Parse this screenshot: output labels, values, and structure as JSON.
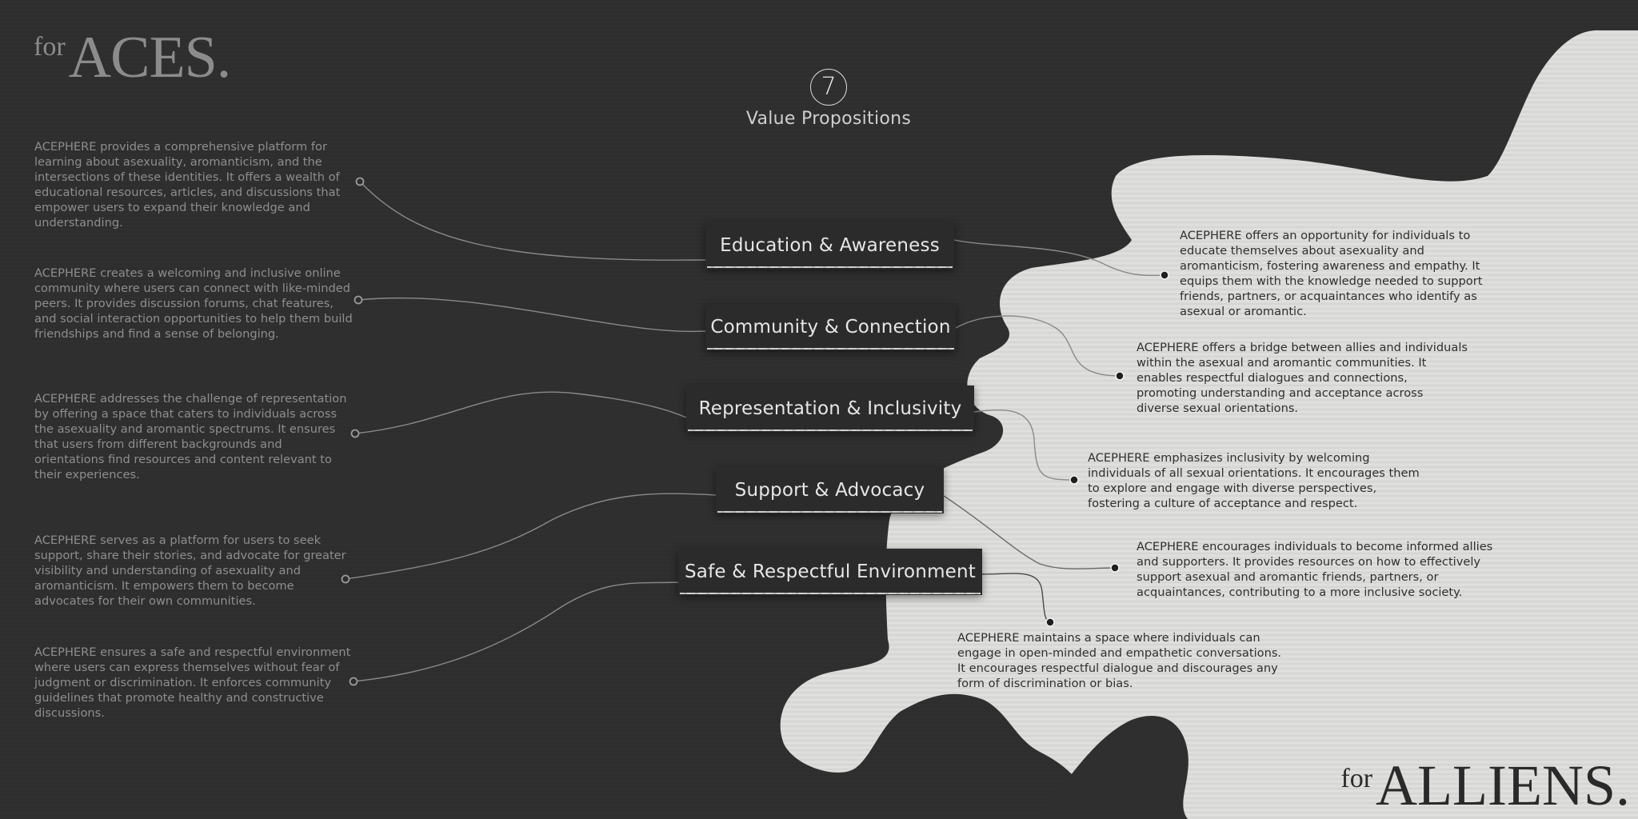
{
  "header": {
    "for_small": "for",
    "aces": "ACES."
  },
  "footer": {
    "for_small": "for",
    "alliens": "ALLIENS."
  },
  "value_props": {
    "number": "7",
    "title": "Value Propositions"
  },
  "propositions": [
    {
      "label": "Education & Awareness"
    },
    {
      "label": "Community & Connection"
    },
    {
      "label": "Representation & Inclusivity"
    },
    {
      "label": "Support & Advocacy"
    },
    {
      "label": "Safe & Respectful Environment"
    }
  ],
  "aces_texts": [
    "ACEPHERE provides a comprehensive platform for learning about asexuality, aromanticism, and the intersections of these identities. It offers a wealth of educational resources, articles, and discussions that empower users to expand their knowledge and understanding.",
    "ACEPHERE creates a welcoming and inclusive online community where users can connect with like-minded peers. It provides discussion forums, chat features, and social interaction opportunities to help them build friendships and find a sense of belonging.",
    "ACEPHERE addresses the challenge of representation by offering a space that caters to individuals across the asexuality and aromantic spectrums. It ensures that users from different backgrounds and orientations find resources and content relevant to their experiences.",
    "ACEPHERE serves as a platform for users to seek support, share their stories, and advocate for greater visibility and understanding of asexuality and aromanticism. It empowers them to become advocates for their own communities.",
    "ACEPHERE ensures a safe and respectful environment where users can express themselves without fear of judgment or discrimination. It enforces community guidelines that promote healthy and constructive discussions."
  ],
  "allies_texts": [
    "ACEPHERE offers an opportunity for individuals to educate themselves about asexuality and aromanticism, fostering awareness and empathy. It equips them with the knowledge needed to support friends, partners, or acquaintances who identify as asexual or aromantic.",
    "ACEPHERE offers a bridge between allies and individuals within the asexual and aromantic communities. It enables respectful dialogues and connections, promoting understanding and acceptance across diverse sexual orientations.",
    "ACEPHERE emphasizes inclusivity by welcoming individuals of all sexual orientations. It encourages them to explore and engage with diverse perspectives, fostering a culture of acceptance and respect.",
    "ACEPHERE encourages individuals to become informed allies and supporters. It provides resources on how to effectively support asexual and aromantic friends, partners, or acquaintances, contributing to a more inclusive society.",
    "ACEPHERE maintains a space where individuals can engage in open-minded and empathetic conversations. It encourages respectful dialogue and discourages any form of discrimination or bias."
  ]
}
